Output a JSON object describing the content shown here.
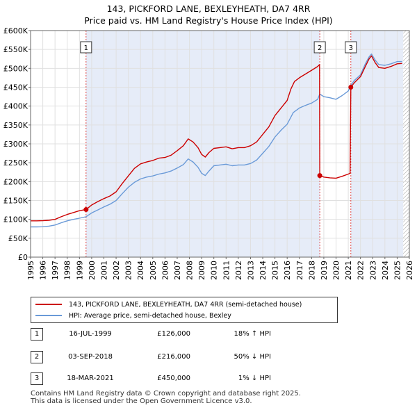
{
  "chart_data": {
    "type": "line",
    "title": "143, PICKFORD LANE, BEXLEYHEATH, DA7 4RR",
    "subtitle": "Price paid vs. HM Land Registry's House Price Index (HPI)",
    "xlim": [
      1995,
      2026
    ],
    "ylim": [
      0,
      600000
    ],
    "x_ticks": [
      "1995",
      "1996",
      "1997",
      "1998",
      "1999",
      "2000",
      "2001",
      "2002",
      "2003",
      "2004",
      "2005",
      "2006",
      "2007",
      "2008",
      "2009",
      "2010",
      "2011",
      "2012",
      "2013",
      "2014",
      "2015",
      "2016",
      "2017",
      "2018",
      "2019",
      "2020",
      "2021",
      "2022",
      "2023",
      "2024",
      "2025",
      "2026"
    ],
    "y_ticks": [
      {
        "value": 0,
        "label": "£0"
      },
      {
        "value": 50000,
        "label": "£50K"
      },
      {
        "value": 100000,
        "label": "£100K"
      },
      {
        "value": 150000,
        "label": "£150K"
      },
      {
        "value": 200000,
        "label": "£200K"
      },
      {
        "value": 250000,
        "label": "£250K"
      },
      {
        "value": 300000,
        "label": "£300K"
      },
      {
        "value": 350000,
        "label": "£350K"
      },
      {
        "value": 400000,
        "label": "£400K"
      },
      {
        "value": 450000,
        "label": "£450K"
      },
      {
        "value": 500000,
        "label": "£500K"
      },
      {
        "value": 550000,
        "label": "£550K"
      },
      {
        "value": 600000,
        "label": "£600K"
      }
    ],
    "shaded_ranges": [
      [
        1999.54,
        2018.67
      ],
      [
        2021.21,
        2025.5
      ]
    ],
    "hatched_range": [
      2025.5,
      2026
    ],
    "series": [
      {
        "name": "143, PICKFORD LANE, BEXLEYHEATH, DA7 4RR (semi-detached house)",
        "color": "#cc0000",
        "points": [
          [
            1995,
            96000
          ],
          [
            1995.5,
            96000
          ],
          [
            1996,
            96500
          ],
          [
            1996.5,
            97500
          ],
          [
            1997,
            100000
          ],
          [
            1997.5,
            107000
          ],
          [
            1998,
            113000
          ],
          [
            1998.5,
            118000
          ],
          [
            1999,
            123000
          ],
          [
            1999.54,
            126000
          ],
          [
            2000,
            138000
          ],
          [
            2000.5,
            147000
          ],
          [
            2001,
            155000
          ],
          [
            2001.5,
            162000
          ],
          [
            2002,
            173000
          ],
          [
            2002.5,
            195000
          ],
          [
            2003,
            215000
          ],
          [
            2003.5,
            235000
          ],
          [
            2004,
            247000
          ],
          [
            2004.5,
            252000
          ],
          [
            2005,
            256000
          ],
          [
            2005.5,
            262000
          ],
          [
            2006,
            264000
          ],
          [
            2006.5,
            270000
          ],
          [
            2007,
            282000
          ],
          [
            2007.5,
            295000
          ],
          [
            2007.9,
            313000
          ],
          [
            2008.3,
            305000
          ],
          [
            2008.7,
            290000
          ],
          [
            2009,
            272000
          ],
          [
            2009.3,
            265000
          ],
          [
            2009.6,
            277000
          ],
          [
            2010,
            288000
          ],
          [
            2010.5,
            290000
          ],
          [
            2011,
            292000
          ],
          [
            2011.5,
            287000
          ],
          [
            2012,
            290000
          ],
          [
            2012.5,
            290000
          ],
          [
            2013,
            295000
          ],
          [
            2013.5,
            305000
          ],
          [
            2014,
            325000
          ],
          [
            2014.5,
            345000
          ],
          [
            2015,
            375000
          ],
          [
            2015.5,
            395000
          ],
          [
            2016,
            415000
          ],
          [
            2016.3,
            445000
          ],
          [
            2016.6,
            465000
          ],
          [
            2017,
            475000
          ],
          [
            2017.5,
            485000
          ],
          [
            2018,
            495000
          ],
          [
            2018.5,
            505000
          ],
          [
            2018.65,
            510000
          ],
          [
            2018.67,
            216000
          ],
          [
            2019,
            212000
          ],
          [
            2019.5,
            210000
          ],
          [
            2020,
            209000
          ],
          [
            2020.5,
            214000
          ],
          [
            2021,
            220000
          ],
          [
            2021.15,
            222000
          ],
          [
            2021.21,
            450000
          ],
          [
            2021.5,
            462000
          ],
          [
            2022,
            478000
          ],
          [
            2022.4,
            505000
          ],
          [
            2022.7,
            525000
          ],
          [
            2022.9,
            533000
          ],
          [
            2023.2,
            515000
          ],
          [
            2023.5,
            502000
          ],
          [
            2024,
            500000
          ],
          [
            2024.5,
            505000
          ],
          [
            2025,
            512000
          ],
          [
            2025.4,
            513000
          ]
        ]
      },
      {
        "name": "HPI: Average price, semi-detached house, Bexley",
        "color": "#6a9ad8",
        "points": [
          [
            1995,
            80000
          ],
          [
            1995.5,
            80000
          ],
          [
            1996,
            80500
          ],
          [
            1996.5,
            82000
          ],
          [
            1997,
            85000
          ],
          [
            1997.5,
            91000
          ],
          [
            1998,
            96000
          ],
          [
            1998.5,
            100000
          ],
          [
            1999,
            103000
          ],
          [
            1999.54,
            107000
          ],
          [
            2000,
            117000
          ],
          [
            2000.5,
            125000
          ],
          [
            2001,
            133000
          ],
          [
            2001.5,
            140000
          ],
          [
            2002,
            150000
          ],
          [
            2002.5,
            168000
          ],
          [
            2003,
            185000
          ],
          [
            2003.5,
            198000
          ],
          [
            2004,
            207000
          ],
          [
            2004.5,
            212000
          ],
          [
            2005,
            215000
          ],
          [
            2005.5,
            220000
          ],
          [
            2006,
            223000
          ],
          [
            2006.5,
            228000
          ],
          [
            2007,
            236000
          ],
          [
            2007.5,
            245000
          ],
          [
            2007.9,
            260000
          ],
          [
            2008.3,
            252000
          ],
          [
            2008.7,
            238000
          ],
          [
            2009,
            222000
          ],
          [
            2009.3,
            216000
          ],
          [
            2009.6,
            228000
          ],
          [
            2010,
            242000
          ],
          [
            2010.5,
            244000
          ],
          [
            2011,
            246000
          ],
          [
            2011.5,
            242000
          ],
          [
            2012,
            244000
          ],
          [
            2012.5,
            244000
          ],
          [
            2013,
            248000
          ],
          [
            2013.5,
            257000
          ],
          [
            2014,
            275000
          ],
          [
            2014.5,
            293000
          ],
          [
            2015,
            318000
          ],
          [
            2015.5,
            336000
          ],
          [
            2016,
            352000
          ],
          [
            2016.5,
            383000
          ],
          [
            2017,
            395000
          ],
          [
            2017.5,
            402000
          ],
          [
            2018,
            408000
          ],
          [
            2018.5,
            418000
          ],
          [
            2018.67,
            432000
          ],
          [
            2019,
            425000
          ],
          [
            2019.5,
            422000
          ],
          [
            2020,
            418000
          ],
          [
            2020.5,
            428000
          ],
          [
            2021,
            440000
          ],
          [
            2021.21,
            455000
          ],
          [
            2021.5,
            468000
          ],
          [
            2022,
            483000
          ],
          [
            2022.4,
            512000
          ],
          [
            2022.7,
            530000
          ],
          [
            2022.9,
            538000
          ],
          [
            2023.2,
            522000
          ],
          [
            2023.5,
            510000
          ],
          [
            2024,
            508000
          ],
          [
            2024.5,
            512000
          ],
          [
            2025,
            518000
          ],
          [
            2025.4,
            518000
          ]
        ]
      }
    ],
    "transactions": [
      {
        "num": "1",
        "x": 1999.54,
        "value": 126000,
        "date": "16-JUL-1999",
        "price": "£126,000",
        "hpi": "18% ↑ HPI"
      },
      {
        "num": "2",
        "x": 2018.67,
        "value": 216000,
        "date": "03-SEP-2018",
        "price": "£216,000",
        "hpi": "50% ↓ HPI"
      },
      {
        "num": "3",
        "x": 2021.21,
        "value": 450000,
        "date": "18-MAR-2021",
        "price": "£450,000",
        "hpi": "1% ↓ HPI"
      }
    ]
  },
  "legend": {
    "property_label": "143, PICKFORD LANE, BEXLEYHEATH, DA7 4RR (semi-detached house)",
    "hpi_label": "HPI: Average price, semi-detached house, Bexley",
    "property_color": "#cc0000",
    "hpi_color": "#6a9ad8"
  },
  "footer": {
    "line1": "Contains HM Land Registry data © Crown copyright and database right 2025.",
    "line2": "This data is licensed under the Open Government Licence v3.0."
  }
}
